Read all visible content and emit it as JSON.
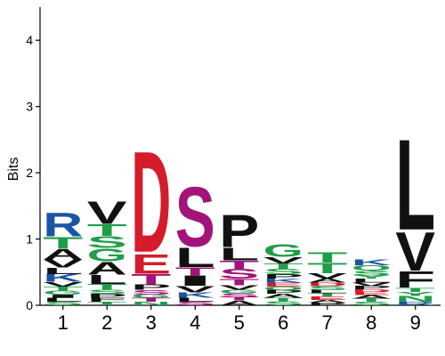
{
  "chart_data": {
    "type": "sequence-logo",
    "ylabel": "Bits",
    "ylim": [
      0,
      4.5
    ],
    "yticks": [
      "0",
      "1",
      "2",
      "3",
      "4"
    ],
    "positions": [
      "1",
      "2",
      "3",
      "4",
      "5",
      "6",
      "7",
      "8",
      "9"
    ],
    "stacks": [
      [
        [
          "S",
          0.05
        ],
        [
          "L",
          0.06
        ],
        [
          "I",
          0.05
        ],
        [
          "G",
          0.06
        ],
        [
          "T",
          0.06
        ],
        [
          "V",
          0.07
        ],
        [
          "K",
          0.12
        ],
        [
          "L",
          0.1
        ],
        [
          "V",
          0.12
        ],
        [
          "A",
          0.16
        ],
        [
          "T",
          0.18
        ],
        [
          "R",
          0.37
        ]
      ],
      [
        [
          "T",
          0.05
        ],
        [
          "F",
          0.06
        ],
        [
          "P",
          0.06
        ],
        [
          "S",
          0.06
        ],
        [
          "T",
          0.09
        ],
        [
          "L",
          0.14
        ],
        [
          "A",
          0.2
        ],
        [
          "G",
          0.2
        ],
        [
          "S",
          0.18
        ],
        [
          "T",
          0.18
        ],
        [
          "V",
          0.35
        ]
      ],
      [
        [
          "N",
          0.05
        ],
        [
          "T",
          0.06
        ],
        [
          "G",
          0.05
        ],
        [
          "S",
          0.07
        ],
        [
          "P",
          0.08
        ],
        [
          "T",
          0.16
        ],
        [
          "E",
          0.3
        ],
        [
          "D",
          1.56
        ]
      ],
      [
        [
          "S",
          0.05
        ],
        [
          "L",
          0.06
        ],
        [
          "K",
          0.08
        ],
        [
          "V",
          0.1
        ],
        [
          "I",
          0.16
        ],
        [
          "T",
          0.12
        ],
        [
          "L",
          0.3
        ],
        [
          "S",
          0.92
        ]
      ],
      [
        [
          "A",
          0.07
        ],
        [
          "T",
          0.05
        ],
        [
          "S",
          0.06
        ],
        [
          "G",
          0.05
        ],
        [
          "V",
          0.07
        ],
        [
          "T",
          0.1
        ],
        [
          "S",
          0.15
        ],
        [
          "T",
          0.12
        ],
        [
          "L",
          0.2
        ],
        [
          "P",
          0.5
        ]
      ],
      [
        [
          "S",
          0.06
        ],
        [
          "T",
          0.05
        ],
        [
          "A",
          0.06
        ],
        [
          "P",
          0.06
        ],
        [
          "Q",
          0.05
        ],
        [
          "E",
          0.06
        ],
        [
          "K",
          0.06
        ],
        [
          "P",
          0.07
        ],
        [
          "S",
          0.08
        ],
        [
          "T",
          0.08
        ],
        [
          "V",
          0.1
        ],
        [
          "G",
          0.2
        ]
      ],
      [
        [
          "P",
          0.04
        ],
        [
          "A",
          0.04
        ],
        [
          "E",
          0.05
        ],
        [
          "T",
          0.05
        ],
        [
          "L",
          0.05
        ],
        [
          "S",
          0.06
        ],
        [
          "D",
          0.05
        ],
        [
          "A",
          0.06
        ],
        [
          "V",
          0.08
        ],
        [
          "T",
          0.16
        ],
        [
          "T",
          0.16
        ]
      ],
      [
        [
          "S",
          0.05
        ],
        [
          "T",
          0.05
        ],
        [
          "A",
          0.05
        ],
        [
          "E",
          0.05
        ],
        [
          "D",
          0.04
        ],
        [
          "P",
          0.05
        ],
        [
          "V",
          0.05
        ],
        [
          "L",
          0.06
        ],
        [
          "Y",
          0.05
        ],
        [
          "S",
          0.07
        ],
        [
          "Q",
          0.08
        ],
        [
          "K",
          0.09
        ]
      ],
      [
        [
          "R",
          0.05
        ],
        [
          "N",
          0.09
        ],
        [
          "Y",
          0.06
        ],
        [
          "T",
          0.06
        ],
        [
          "F",
          0.25
        ],
        [
          "V",
          0.6
        ],
        [
          "L",
          1.4
        ]
      ]
    ]
  }
}
